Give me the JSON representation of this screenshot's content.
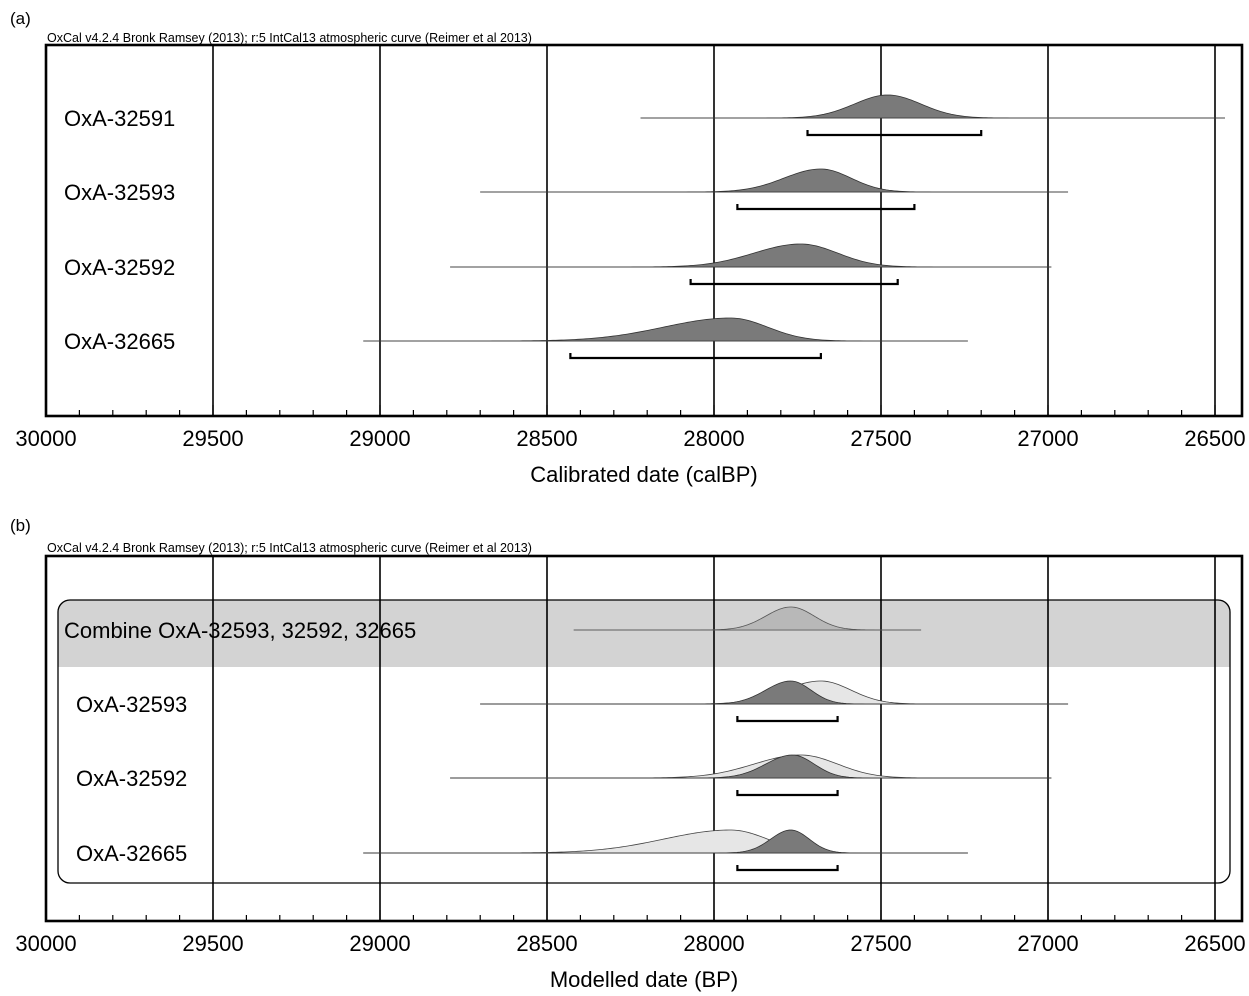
{
  "chart_data": [
    {
      "type": "area",
      "panel_label": "(a)",
      "caption": "OxCal v4.2.4 Bronk Ramsey (2013); r:5 IntCal13 atmospheric curve (Reimer et al 2013)",
      "xlabel": "Calibrated date (calBP)",
      "xlim": [
        30000,
        26400
      ],
      "x_reversed": true,
      "xticks": [
        "30000",
        "29500",
        "29000",
        "28500",
        "28000",
        "27500",
        "27000",
        "26500"
      ],
      "xtick_values": [
        30000,
        29500,
        29000,
        28500,
        28000,
        27500,
        27000,
        26500
      ],
      "grid": true,
      "samples": [
        {
          "label": "OxA-32591",
          "prior": null,
          "dist": {
            "peak": 27480,
            "sd_left": 100,
            "sd_right": 100
          },
          "dist_range": [
            28220,
            26470
          ],
          "range_bar": [
            27720,
            27200
          ]
        },
        {
          "label": "OxA-32593",
          "prior": null,
          "dist": {
            "peak": 27680,
            "sd_left": 110,
            "sd_right": 90
          },
          "dist_range": [
            28700,
            26940
          ],
          "range_bar": [
            27930,
            27400
          ]
        },
        {
          "label": "OxA-32592",
          "prior": null,
          "dist": {
            "peak": 27740,
            "sd_left": 140,
            "sd_right": 110
          },
          "dist_range": [
            28790,
            26990
          ],
          "range_bar": [
            28070,
            27450
          ]
        },
        {
          "label": "OxA-32665",
          "prior": null,
          "dist": {
            "peak": 27950,
            "sd_left": 200,
            "sd_right": 110
          },
          "dist_range": [
            29050,
            27240
          ],
          "range_bar": [
            28430,
            27680
          ]
        }
      ]
    },
    {
      "type": "area",
      "panel_label": "(b)",
      "caption": "OxCal v4.2.4 Bronk Ramsey (2013); r:5 IntCal13 atmospheric curve (Reimer et al 2013)",
      "xlabel": "Modelled date (BP)",
      "xlim": [
        30000,
        26400
      ],
      "x_reversed": true,
      "xticks": [
        "30000",
        "29500",
        "29000",
        "28500",
        "28000",
        "27500",
        "27000",
        "26500"
      ],
      "xtick_values": [
        30000,
        29500,
        29000,
        28500,
        28000,
        27500,
        27000,
        26500
      ],
      "grid": true,
      "combine": {
        "label": "Combine OxA-32593, 32592, 32665",
        "dist": {
          "peak": 27770,
          "sd_left": 75,
          "sd_right": 70
        },
        "dist_range": [
          28420,
          27380
        ]
      },
      "samples": [
        {
          "label": "OxA-32593",
          "prior": {
            "peak": 27680,
            "sd_left": 110,
            "sd_right": 90
          },
          "dist": {
            "peak": 27770,
            "sd_left": 75,
            "sd_right": 60
          },
          "dist_range": [
            28700,
            26940
          ],
          "range_bar": [
            27930,
            27630
          ]
        },
        {
          "label": "OxA-32592",
          "prior": {
            "peak": 27740,
            "sd_left": 140,
            "sd_right": 110
          },
          "dist": {
            "peak": 27765,
            "sd_left": 80,
            "sd_right": 65
          },
          "dist_range": [
            28790,
            26990
          ],
          "range_bar": [
            27930,
            27630
          ]
        },
        {
          "label": "OxA-32665",
          "prior": {
            "peak": 27950,
            "sd_left": 200,
            "sd_right": 110
          },
          "dist": {
            "peak": 27770,
            "sd_left": 60,
            "sd_right": 55
          },
          "dist_range": [
            29050,
            27240
          ],
          "range_bar": [
            27930,
            27630
          ]
        }
      ]
    }
  ],
  "colors": {
    "posterior": "#7a7a7a",
    "prior": "#e6e6e6",
    "combine_fill": "#b8b8b8",
    "combine_band": "#d3d3d3",
    "frame": "#000000"
  }
}
